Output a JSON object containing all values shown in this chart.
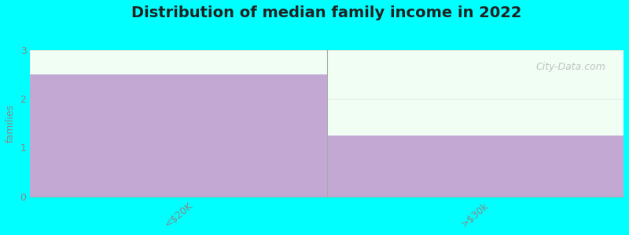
{
  "title": "Distribution of median family income in 2022",
  "values": [
    2.5,
    1.25
  ],
  "ylim": [
    0,
    3
  ],
  "yticks": [
    0,
    1,
    2,
    3
  ],
  "ylabel": "families",
  "bar_color": "#c4a8d4",
  "background_color": "#00ffff",
  "plot_bg_color": "#f0fef4",
  "title_color": "#222222",
  "subtitle_color": "#44aaaa",
  "tick_label_color": "#888888",
  "watermark": "City-Data.com",
  "xlabels": [
    "<$20K",
    ">$30k"
  ],
  "divider_color": "#aaaaaa",
  "spine_color": "#aaaaaa",
  "grid_color": "#dddddd",
  "title_fontsize": 14,
  "subtitle_fontsize": 10,
  "ylabel_fontsize": 9,
  "tick_fontsize": 9
}
